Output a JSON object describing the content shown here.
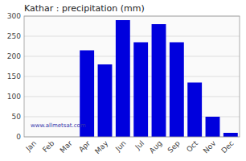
{
  "chart_data": {
    "type": "bar",
    "title": "Kathar : precipitation (mm)",
    "categories": [
      "Jan",
      "Feb",
      "Mar",
      "Apr",
      "May",
      "Jun",
      "Jul",
      "Aug",
      "Sep",
      "Oct",
      "Nov",
      "Dec"
    ],
    "values": [
      0,
      0,
      0,
      215,
      180,
      290,
      235,
      280,
      235,
      135,
      50,
      10
    ],
    "color": "#0000dd",
    "ylim": [
      0,
      300
    ],
    "yticks": [
      0,
      50,
      100,
      150,
      200,
      250,
      300
    ],
    "grid": true,
    "annotations": [
      "www.allmetsat.com"
    ]
  }
}
